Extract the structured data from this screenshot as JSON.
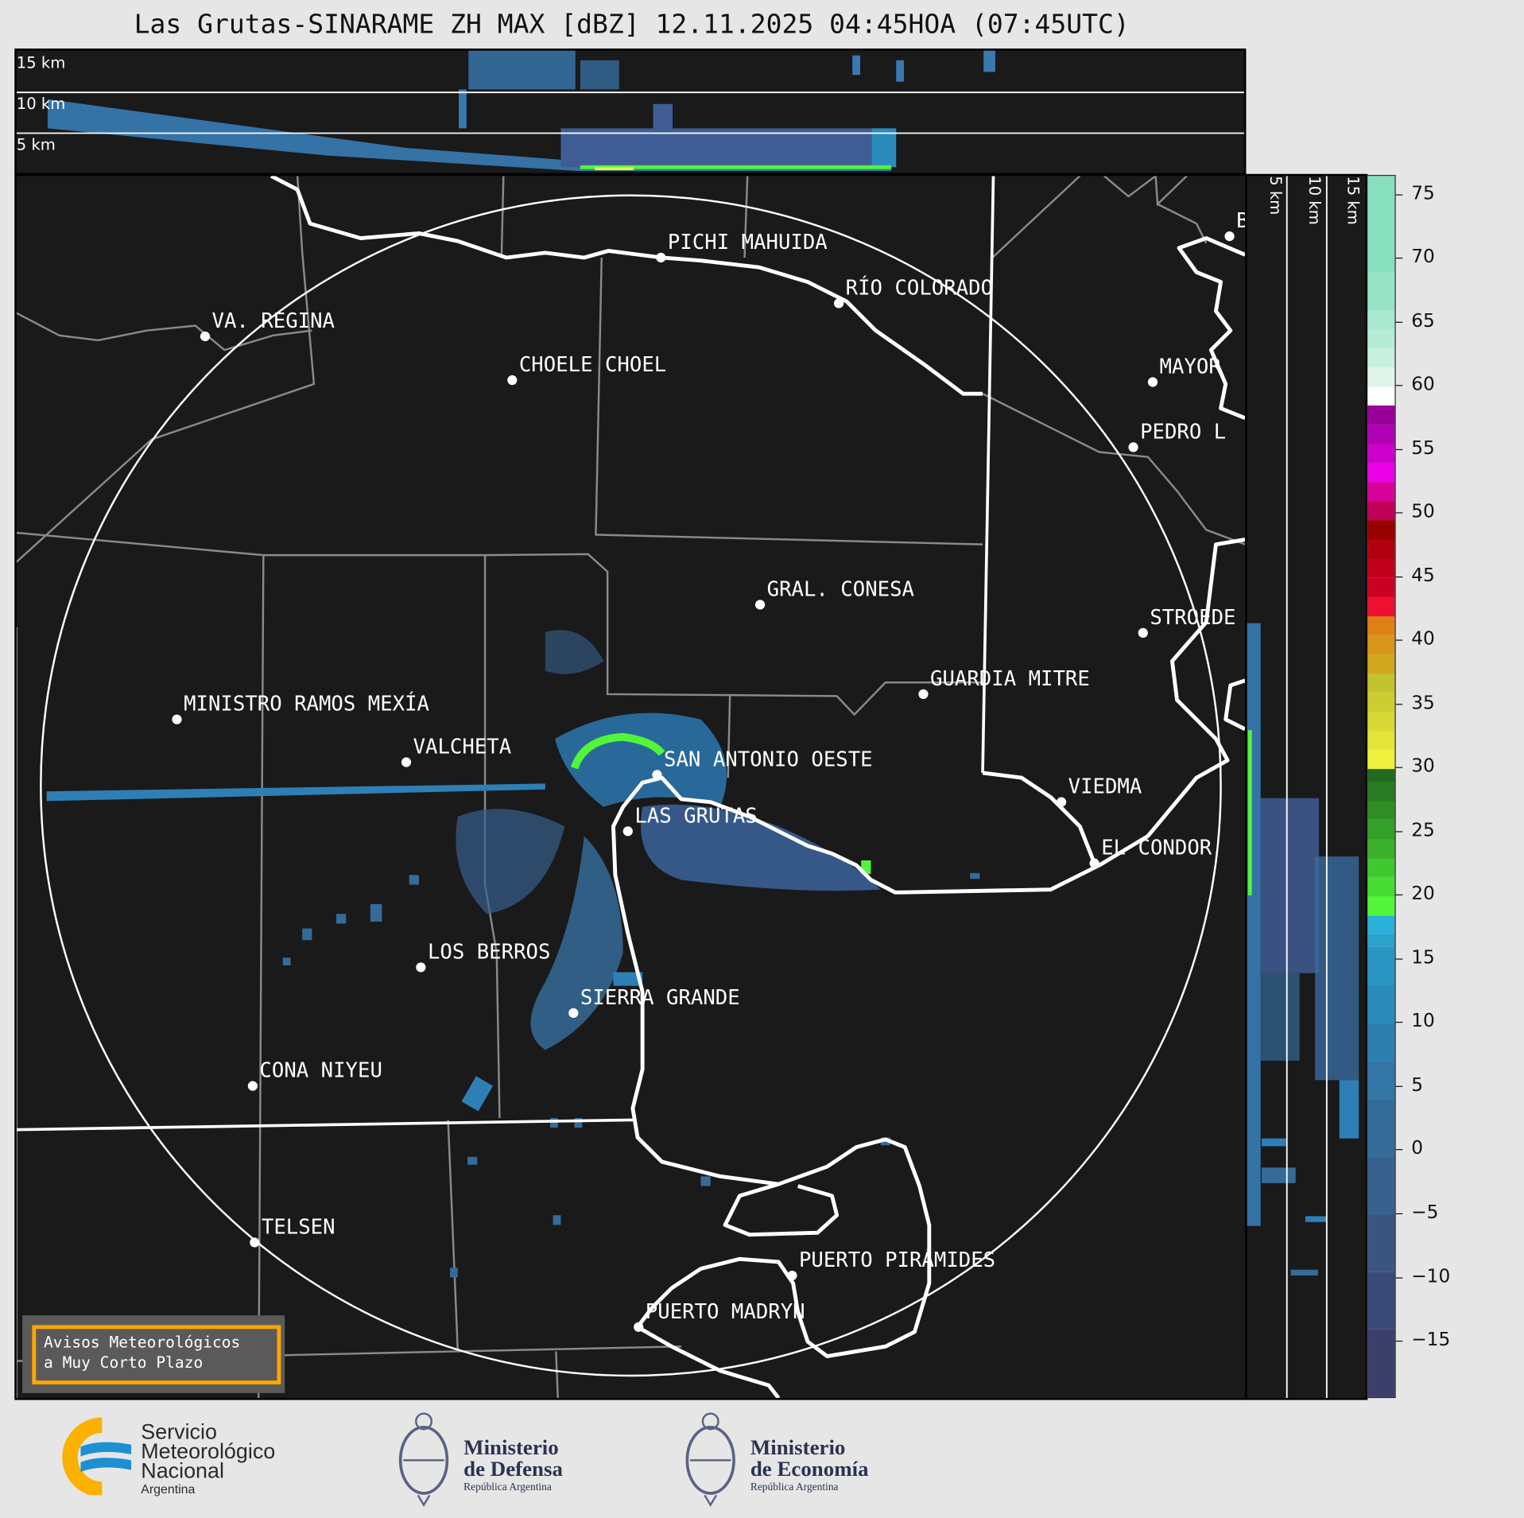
{
  "title": "Las Grutas-SINARAME ZH MAX [dBZ] 12.11.2025 04:45HOA (07:45UTC)",
  "top_panel": {
    "height_labels": [
      "15 km",
      "10 km",
      "5 km"
    ]
  },
  "right_panel": {
    "height_labels": [
      "5 km",
      "10 km",
      "15 km"
    ]
  },
  "colorbar": {
    "unit": "dBZ",
    "range": [
      -19.5,
      76.5
    ],
    "ticks": [
      "75",
      "70",
      "65",
      "60",
      "55",
      "50",
      "45",
      "40",
      "35",
      "30",
      "25",
      "20",
      "15",
      "10",
      "5",
      "0",
      "−5",
      "−10",
      "−15"
    ],
    "tick_values": [
      75,
      70,
      65,
      60,
      55,
      50,
      45,
      40,
      35,
      30,
      25,
      20,
      15,
      10,
      5,
      0,
      -5,
      -10,
      -15
    ],
    "bins": [
      [
        -19.5,
        "#3b3f6a"
      ],
      [
        -14,
        "#3a4a78"
      ],
      [
        -9.5,
        "#3a5580"
      ],
      [
        -5,
        "#37608f"
      ],
      [
        -0.5,
        "#356b98"
      ],
      [
        4,
        "#3277a6"
      ],
      [
        7,
        "#2c80b0"
      ],
      [
        10,
        "#2a8bba"
      ],
      [
        13,
        "#2895c3"
      ],
      [
        16,
        "#2aa3cc"
      ],
      [
        17,
        "#2bb0db"
      ],
      [
        18.5,
        "#52f53a"
      ],
      [
        20,
        "#46dd35"
      ],
      [
        21.5,
        "#40c830"
      ],
      [
        23,
        "#3ab02b"
      ],
      [
        24.5,
        "#33a027"
      ],
      [
        26,
        "#2e8d25"
      ],
      [
        27.5,
        "#287b22"
      ],
      [
        29,
        "#226b1e"
      ],
      [
        30,
        "#eef03e"
      ],
      [
        31.5,
        "#e3e43a"
      ],
      [
        33,
        "#d8d836"
      ],
      [
        34.5,
        "#cccc33"
      ],
      [
        36,
        "#c2c22e"
      ],
      [
        37.5,
        "#d0a820"
      ],
      [
        39,
        "#d9961a"
      ],
      [
        40.5,
        "#df8015"
      ],
      [
        42,
        "#ee1033"
      ],
      [
        43.5,
        "#cc0022"
      ],
      [
        45,
        "#c00018"
      ],
      [
        46.5,
        "#b00010"
      ],
      [
        48,
        "#990000"
      ],
      [
        49.5,
        "#c00058"
      ],
      [
        51,
        "#d8009a"
      ],
      [
        52.5,
        "#ec00e8"
      ],
      [
        54,
        "#cc00cc"
      ],
      [
        55.5,
        "#b000b4"
      ],
      [
        57,
        "#990099"
      ],
      [
        58.5,
        "#ffffff"
      ],
      [
        60,
        "#e0f5ea"
      ],
      [
        61.5,
        "#c8f0de"
      ],
      [
        63,
        "#b6ecd6"
      ],
      [
        64.5,
        "#a8e9d0"
      ],
      [
        66,
        "#96e3c6"
      ],
      [
        69,
        "#88dfbf"
      ]
    ]
  },
  "map": {
    "background": "#1a1a1a",
    "cities": [
      "PICHI MAHUIDA",
      "RÍO COLORADO",
      "VA. REGINA",
      "CHOELE CHOEL",
      "MAYOR",
      "PEDRO L",
      "GRAL. CONESA",
      "STROEDE",
      "GUARDIA MITRE",
      "MINISTRO RAMOS MEXÍA",
      "VALCHETA",
      "SAN ANTONIO OESTE",
      "LAS GRUTAS",
      "VIEDMA",
      "EL CONDOR",
      "LOS BERROS",
      "SIERRA GRANDE",
      "CONA NIYEU",
      "TELSEN",
      "PUERTO PIRÁMIDES",
      "PUERTO MADRYN",
      "B"
    ]
  },
  "warning_box": {
    "line1": "Avisos Meteorológicos",
    "line2": "a Muy Corto Plazo",
    "border_color": "#ffa500"
  },
  "logos": {
    "smn": {
      "line1": "Servicio",
      "line2": "Meteorológico",
      "line3": "Nacional",
      "line4": "Argentina"
    },
    "defensa": {
      "line1": "Ministerio",
      "line2": "de Defensa",
      "line3": "República Argentina"
    },
    "economia": {
      "line1": "Ministerio",
      "line2": "de Economía",
      "line3": "República Argentina"
    }
  }
}
